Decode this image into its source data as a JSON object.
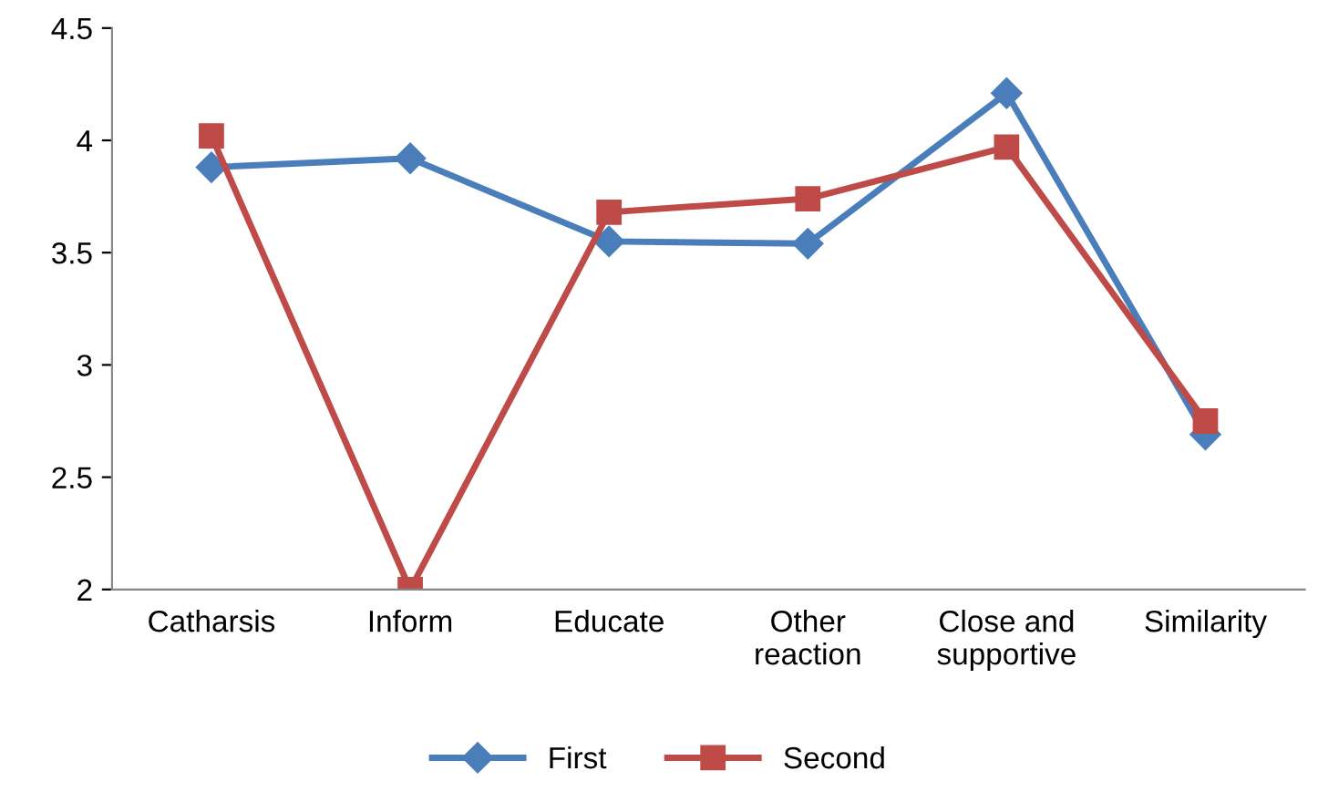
{
  "chart_data": {
    "type": "line",
    "categories": [
      "Catharsis",
      "Inform",
      "Educate",
      "Other\nreaction",
      "Close and\nsupportive",
      "Similarity"
    ],
    "series": [
      {
        "name": "First",
        "color": "#4a7ebb",
        "marker": "diamond",
        "values": [
          3.88,
          3.92,
          3.55,
          3.54,
          4.21,
          2.69
        ]
      },
      {
        "name": "Second",
        "color": "#be4b48",
        "marker": "square",
        "values": [
          4.02,
          2.0,
          3.68,
          3.74,
          3.97,
          2.75
        ]
      }
    ],
    "ylim": [
      2,
      4.5
    ],
    "yticks": [
      2,
      2.5,
      3,
      3.5,
      4,
      4.5
    ],
    "grid": false,
    "legend": "bottom",
    "line_style": "solid"
  }
}
